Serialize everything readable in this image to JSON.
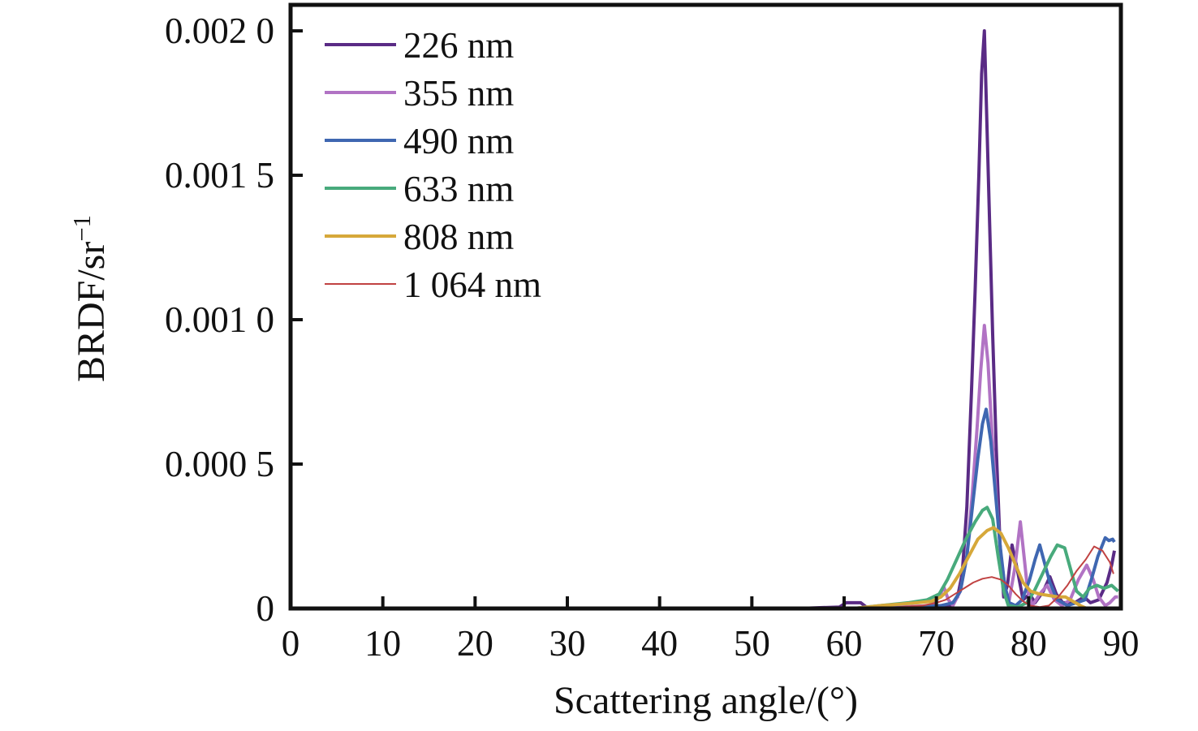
{
  "figure": {
    "xlabel": "Scattering angle/(°)",
    "ylabel_base": "BRDF/sr",
    "ylabel_exp": "−1",
    "background": "#ffffff",
    "frame_color": "#111111"
  },
  "chart_data": {
    "type": "line",
    "title": "",
    "xlabel": "Scattering angle/(°)",
    "ylabel": "BRDF/sr^−1",
    "xlim": [
      0,
      90
    ],
    "ylim": [
      0,
      0.00209
    ],
    "grid": false,
    "legend_position": "upper-left-inside",
    "x_ticks": [
      0,
      10,
      20,
      30,
      40,
      50,
      60,
      70,
      80,
      90
    ],
    "y_ticks": [
      {
        "value": 0.002,
        "label": "0.002 0"
      },
      {
        "value": 0.0015,
        "label": "0.001 5"
      },
      {
        "value": 0.001,
        "label": "0.001 0"
      },
      {
        "value": 0.0005,
        "label": "0.000 5"
      },
      {
        "value": 0,
        "label": "0"
      }
    ],
    "series": [
      {
        "name": "226 nm",
        "color": "#5a2b85",
        "width": 4,
        "points": [
          [
            0,
            0
          ],
          [
            55,
            0
          ],
          [
            59.5,
            5e-06
          ],
          [
            60.2,
            2e-05
          ],
          [
            61.8,
            2e-05
          ],
          [
            62.4,
            5e-06
          ],
          [
            70,
            5e-06
          ],
          [
            71.5,
            1e-05
          ],
          [
            72.3,
            4e-05
          ],
          [
            72.8,
            0.00012
          ],
          [
            73.3,
            0.00035
          ],
          [
            73.8,
            0.00075
          ],
          [
            74.2,
            0.0011
          ],
          [
            74.6,
            0.0015
          ],
          [
            74.9,
            0.00185
          ],
          [
            75.2,
            0.002
          ],
          [
            75.5,
            0.00165
          ],
          [
            75.8,
            0.0013
          ],
          [
            76.1,
            0.00095
          ],
          [
            76.5,
            0.00055
          ],
          [
            76.9,
            0.00022
          ],
          [
            77.3,
            4e-05
          ],
          [
            77.7,
            8e-05
          ],
          [
            78.2,
            0.00022
          ],
          [
            78.8,
            0.00013
          ],
          [
            79.4,
            3e-05
          ],
          [
            80.1,
            5e-05
          ],
          [
            80.7,
            2e-05
          ],
          [
            81.6,
            6e-05
          ],
          [
            82.3,
            0.00011
          ],
          [
            83,
            5e-05
          ],
          [
            83.7,
            2e-05
          ],
          [
            85,
            2e-05
          ],
          [
            86,
            4e-05
          ],
          [
            86.7,
            2e-05
          ],
          [
            87.6,
            3e-05
          ],
          [
            88.5,
            9e-05
          ],
          [
            89,
            0.00015
          ],
          [
            89.3,
            0.0002
          ]
        ]
      },
      {
        "name": "355 nm",
        "color": "#b173c4",
        "width": 4,
        "points": [
          [
            0,
            0
          ],
          [
            62,
            0
          ],
          [
            66,
            5e-06
          ],
          [
            69.5,
            1e-05
          ],
          [
            70.3,
            4e-05
          ],
          [
            70.8,
            7.5e-05
          ],
          [
            71.3,
            3e-05
          ],
          [
            71.8,
            1e-05
          ],
          [
            72.6,
            6e-05
          ],
          [
            73.3,
            0.00018
          ],
          [
            73.9,
            0.0004
          ],
          [
            74.4,
            0.00062
          ],
          [
            74.8,
            0.00082
          ],
          [
            75.2,
            0.00098
          ],
          [
            75.6,
            0.00085
          ],
          [
            76,
            0.00062
          ],
          [
            76.5,
            0.00038
          ],
          [
            77,
            0.00018
          ],
          [
            77.5,
            6e-05
          ],
          [
            77.9,
            3e-05
          ],
          [
            78.5,
            0.00014
          ],
          [
            79.1,
            0.0003
          ],
          [
            79.5,
            0.00018
          ],
          [
            79.9,
            6e-05
          ],
          [
            80.4,
            1e-05
          ],
          [
            81.2,
            5e-05
          ],
          [
            82,
            8e-05
          ],
          [
            82.8,
            3e-05
          ],
          [
            83.6,
            1e-05
          ],
          [
            84.5,
            3e-05
          ],
          [
            85.4,
            0.0001
          ],
          [
            86.3,
            0.00015
          ],
          [
            87,
            0.0001
          ],
          [
            87.6,
            4e-05
          ],
          [
            88.3,
            1e-05
          ],
          [
            88.8,
            2e-05
          ],
          [
            89.4,
            4e-05
          ],
          [
            89.7,
            4e-05
          ]
        ]
      },
      {
        "name": "490 nm",
        "color": "#3f67b1",
        "width": 4,
        "points": [
          [
            0,
            0
          ],
          [
            64,
            0
          ],
          [
            68,
            5e-06
          ],
          [
            70.5,
            1e-05
          ],
          [
            71.8,
            2e-05
          ],
          [
            72.6,
            6e-05
          ],
          [
            73.3,
            0.00018
          ],
          [
            73.9,
            0.00035
          ],
          [
            74.5,
            0.00052
          ],
          [
            75,
            0.00064
          ],
          [
            75.4,
            0.00069
          ],
          [
            75.9,
            0.00058
          ],
          [
            76.4,
            0.0004
          ],
          [
            76.9,
            0.00022
          ],
          [
            77.4,
            8e-05
          ],
          [
            77.9,
            2e-05
          ],
          [
            78.6,
            1e-05
          ],
          [
            79.3,
            3e-05
          ],
          [
            80.1,
            0.0001
          ],
          [
            80.7,
            0.00017
          ],
          [
            81.2,
            0.00022
          ],
          [
            81.7,
            0.00016
          ],
          [
            82.3,
            9e-05
          ],
          [
            83.1,
            3e-05
          ],
          [
            84.2,
            1e-05
          ],
          [
            85.2,
            2e-05
          ],
          [
            86.1,
            3e-05
          ],
          [
            86.8,
            0.0001
          ],
          [
            87.5,
            0.00018
          ],
          [
            88.3,
            0.000245
          ],
          [
            88.7,
            0.000235
          ],
          [
            89.1,
            0.00024
          ],
          [
            89.3,
            0.00023
          ]
        ]
      },
      {
        "name": "633 nm",
        "color": "#48aa7c",
        "width": 4,
        "points": [
          [
            0,
            0
          ],
          [
            61,
            0
          ],
          [
            64,
            1e-05
          ],
          [
            67,
            2e-05
          ],
          [
            69,
            3e-05
          ],
          [
            70.3,
            5e-05
          ],
          [
            71.2,
            0.0001
          ],
          [
            72.2,
            0.00017
          ],
          [
            73.2,
            0.00024
          ],
          [
            74.2,
            0.0003
          ],
          [
            75,
            0.00034
          ],
          [
            75.5,
            0.00035
          ],
          [
            76.1,
            0.00031
          ],
          [
            76.7,
            0.00018
          ],
          [
            77.3,
            6e-05
          ],
          [
            77.8,
            1e-05
          ],
          [
            78.8,
            5e-06
          ],
          [
            79.8,
            2e-05
          ],
          [
            80.6,
            6e-05
          ],
          [
            81.5,
            0.00012
          ],
          [
            82.4,
            0.00018
          ],
          [
            83.1,
            0.00022
          ],
          [
            83.9,
            0.00021
          ],
          [
            84.6,
            0.00013
          ],
          [
            85.2,
            6e-05
          ],
          [
            85.9,
            4e-05
          ],
          [
            86.6,
            7e-05
          ],
          [
            87.4,
            8e-05
          ],
          [
            88.2,
            7e-05
          ],
          [
            89,
            8e-05
          ],
          [
            89.7,
            6e-05
          ]
        ]
      },
      {
        "name": "808 nm",
        "color": "#d6a83a",
        "width": 4,
        "points": [
          [
            0,
            0
          ],
          [
            61,
            0
          ],
          [
            62.5,
            5e-06
          ],
          [
            64,
            1e-05
          ],
          [
            66,
            1.5e-05
          ],
          [
            68,
            2e-05
          ],
          [
            69.5,
            2.5e-05
          ],
          [
            70.5,
            4e-05
          ],
          [
            71.5,
            7e-05
          ],
          [
            72.5,
            0.00012
          ],
          [
            73.5,
            0.00018
          ],
          [
            74.5,
            0.00024
          ],
          [
            75.5,
            0.00027
          ],
          [
            76.2,
            0.00028
          ],
          [
            77,
            0.00026
          ],
          [
            77.8,
            0.00021
          ],
          [
            78.6,
            0.00015
          ],
          [
            79.4,
            9e-05
          ],
          [
            80.2,
            6e-05
          ],
          [
            81.2,
            5e-05
          ],
          [
            82.2,
            4.5e-05
          ],
          [
            83.2,
            4e-05
          ],
          [
            84,
            4e-05
          ],
          [
            84.8,
            2.5e-05
          ],
          [
            85.6,
            1e-05
          ],
          [
            86.3,
            0
          ]
        ]
      },
      {
        "name": "1 064 nm",
        "color": "#c04242",
        "width": 2,
        "points": [
          [
            0,
            0
          ],
          [
            63,
            0
          ],
          [
            66,
            5e-06
          ],
          [
            68.5,
            1e-05
          ],
          [
            70,
            2e-05
          ],
          [
            71,
            3e-05
          ],
          [
            72,
            5e-05
          ],
          [
            73,
            7e-05
          ],
          [
            74,
            9e-05
          ],
          [
            75,
            0.000103
          ],
          [
            76,
            0.000109
          ],
          [
            77,
            0.0001
          ],
          [
            77.8,
            8e-05
          ],
          [
            78.6,
            5e-05
          ],
          [
            79.4,
            2.5e-05
          ],
          [
            80.2,
            1e-05
          ],
          [
            81.2,
            5e-06
          ],
          [
            82.2,
            1e-05
          ],
          [
            83.2,
            4e-05
          ],
          [
            84.2,
            8e-05
          ],
          [
            85.2,
            0.00013
          ],
          [
            86.2,
            0.00017
          ],
          [
            87.1,
            0.000215
          ],
          [
            88,
            0.0002
          ],
          [
            88.8,
            0.00016
          ],
          [
            89.2,
            0.00012
          ]
        ]
      }
    ]
  }
}
